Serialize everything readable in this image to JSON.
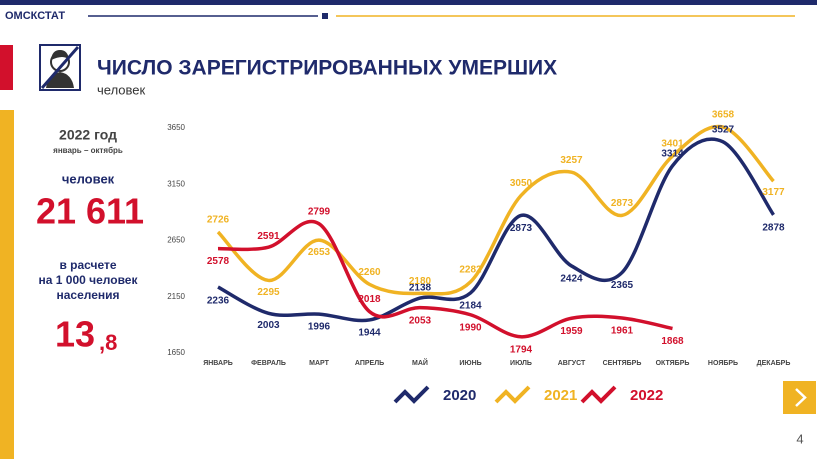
{
  "header": {
    "org": "ОМСКСТАТ",
    "page": "4"
  },
  "title": "ЧИСЛО ЗАРЕГИСТРИРОВАННЫХ УМЕРШИХ",
  "subtitle": "человек",
  "summary": {
    "year": "2022 год",
    "period": "январь – октябрь",
    "unit": "человек",
    "total": "21 611",
    "rate_caption": [
      "в расчете",
      "на 1 000 человек",
      "населения"
    ],
    "rate_int": "13",
    "rate_frac": ",8"
  },
  "chart_data": {
    "type": "line",
    "categories": [
      "ЯНВАРЬ",
      "ФЕВРАЛЬ",
      "МАРТ",
      "АПРЕЛЬ",
      "МАЙ",
      "ИЮНЬ",
      "ИЮЛЬ",
      "АВГУСТ",
      "СЕНТЯБРЬ",
      "ОКТЯБРЬ",
      "НОЯБРЬ",
      "ДЕКАБРЬ"
    ],
    "series": [
      {
        "name": "2020",
        "color": "#1f2a6b",
        "values": [
          2236,
          2003,
          1996,
          1944,
          2138,
          2184,
          2873,
          2424,
          2365,
          3314,
          3527,
          2878
        ]
      },
      {
        "name": "2021",
        "color": "#f0b323",
        "values": [
          2726,
          2295,
          2653,
          2260,
          2180,
          2282,
          3050,
          3257,
          2873,
          3401,
          3658,
          3177
        ]
      },
      {
        "name": "2022",
        "color": "#d2102c",
        "values": [
          2578,
          2591,
          2799,
          2018,
          2053,
          1990,
          1794,
          1959,
          1961,
          1868,
          null,
          null
        ]
      }
    ],
    "ylim": [
      1650,
      3650
    ],
    "yticks": [
      1650,
      2150,
      2650,
      3150,
      3650
    ],
    "grid": false,
    "legend": "bottom"
  }
}
